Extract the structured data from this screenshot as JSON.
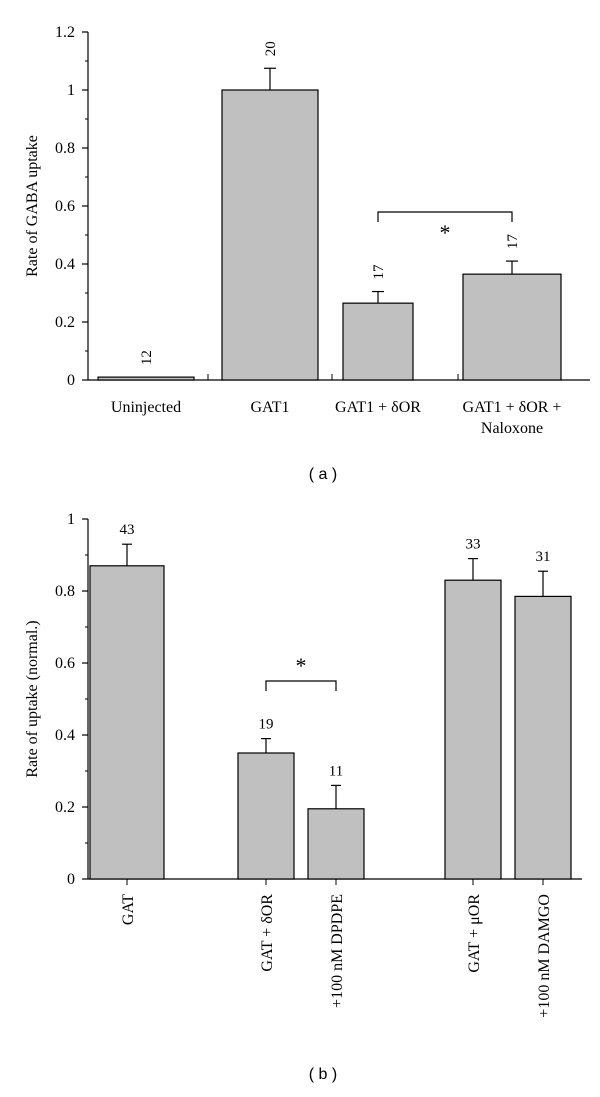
{
  "chart_data": [
    {
      "type": "bar",
      "panel_label": "( a )",
      "ylabel": "Rate of GABA uptake",
      "ylim": [
        0,
        1.2
      ],
      "yticks": [
        "0",
        "0.2",
        "0.4",
        "0.6",
        "0.8",
        "1",
        "1.2"
      ],
      "categories": [
        [
          "Uninjected"
        ],
        [
          "GAT1"
        ],
        [
          "GAT1 + δOR"
        ],
        [
          "GAT1 + δOR +",
          "Naloxone"
        ]
      ],
      "values": [
        0.01,
        1.0,
        0.265,
        0.365
      ],
      "errors": [
        0.0,
        0.075,
        0.04,
        0.045
      ],
      "n_labels": [
        "12",
        "20",
        "17",
        "17"
      ],
      "significance": {
        "between": [
          2,
          3
        ],
        "label": "*"
      },
      "bar_color": "#c0c0c0"
    },
    {
      "type": "bar",
      "panel_label": "( b )",
      "ylabel": "Rate of uptake (normal.)",
      "ylim": [
        0,
        1
      ],
      "yticks": [
        "0",
        "0.2",
        "0.4",
        "0.6",
        "0.8",
        "1"
      ],
      "categories": [
        "GAT",
        "GAT + δOR",
        "+100 nM DPDPE",
        "GAT + μOR",
        "+100 nM DAMGO"
      ],
      "values": [
        0.87,
        0.35,
        0.195,
        0.83,
        0.785
      ],
      "errors": [
        0.06,
        0.04,
        0.065,
        0.06,
        0.07
      ],
      "n_labels": [
        "43",
        "19",
        "11",
        "33",
        "31"
      ],
      "significance": {
        "between": [
          1,
          2
        ],
        "label": "*"
      },
      "bar_color": "#c0c0c0"
    }
  ]
}
